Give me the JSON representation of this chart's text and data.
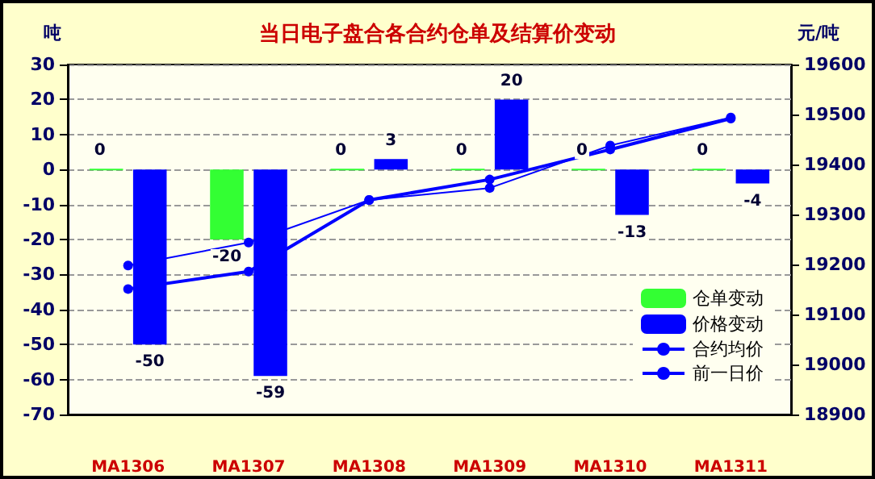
{
  "chart_data": {
    "type": "bar",
    "title": "当日电子盘合各合约仓单及结算价变动",
    "ylabel": "吨",
    "y2label": "元/吨",
    "categories": [
      "MA1306",
      "MA1307",
      "MA1308",
      "MA1309",
      "MA1310",
      "MA1311"
    ],
    "series": [
      {
        "name": "仓单变动",
        "color": "#33ff33",
        "values": [
          0,
          -20,
          0,
          0,
          0,
          0
        ],
        "value_labels": [
          "0",
          "-20",
          "0",
          "0",
          "0",
          "0"
        ]
      },
      {
        "name": "价格变动",
        "color": "#0000ff",
        "values": [
          -50,
          -59,
          3,
          20,
          -13,
          -4
        ],
        "value_labels": [
          "-50",
          "-59",
          "3",
          "20",
          "-13",
          "-4"
        ]
      },
      {
        "name": "合约均价",
        "type": "line",
        "axis": "y2",
        "color": "#0000ff",
        "values": [
          19151,
          19186,
          19329,
          19370,
          19430,
          19492
        ]
      },
      {
        "name": "前一日价",
        "type": "line",
        "axis": "y2",
        "color": "#0000ff",
        "values": [
          19198,
          19244,
          19329,
          19353,
          19438,
          19494
        ]
      }
    ],
    "ylim": [
      -70,
      30
    ],
    "yticks": [
      -70,
      -60,
      -50,
      -40,
      -30,
      -20,
      -10,
      0,
      10,
      20,
      30
    ],
    "y2lim": [
      18900,
      19600
    ],
    "y2ticks": [
      18900,
      19000,
      19100,
      19200,
      19300,
      19400,
      19500,
      19600
    ],
    "grid": "y",
    "legend": "right",
    "marker": "circle"
  }
}
